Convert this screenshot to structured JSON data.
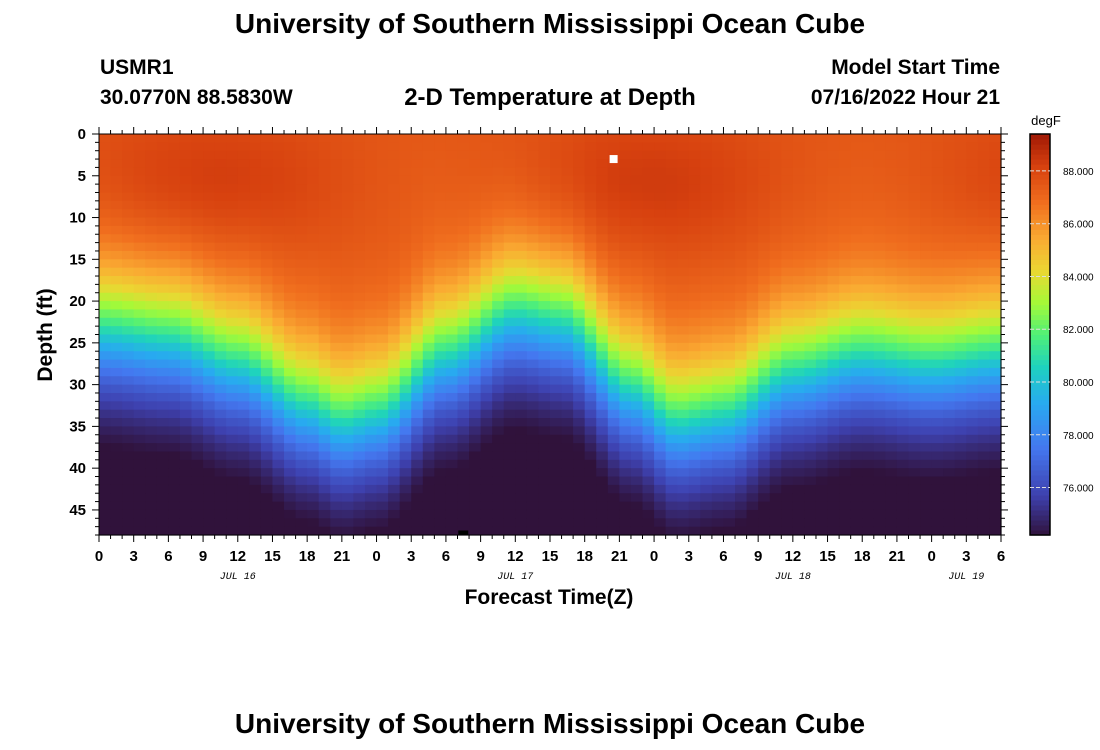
{
  "header": {
    "title": "University of Southern Mississippi Ocean Cube",
    "station_id": "USMR1",
    "location": "30.0770N  88.5830W",
    "model_start_label": "Model Start Time",
    "model_start_value": "07/16/2022 Hour 21",
    "footer_title": "University of Southern Mississippi Ocean Cube"
  },
  "chart_data": {
    "type": "heatmap",
    "title": "2-D Temperature at Depth",
    "xlabel": "Forecast Time(Z)",
    "ylabel": "Depth (ft)",
    "colorbar_unit": "degF",
    "x_range_hours": [
      0,
      78
    ],
    "x_tick_labels": [
      "0",
      "3",
      "6",
      "9",
      "12",
      "15",
      "18",
      "21",
      "0",
      "3",
      "6",
      "9",
      "12",
      "15",
      "18",
      "21",
      "0",
      "3",
      "6",
      "9",
      "12",
      "15",
      "18",
      "21",
      "0",
      "3",
      "6"
    ],
    "date_labels": [
      {
        "hour": 12,
        "label": "JUL 16"
      },
      {
        "hour": 36,
        "label": "JUL 17"
      },
      {
        "hour": 60,
        "label": "JUL 18"
      },
      {
        "hour": 75,
        "label": "JUL 19"
      }
    ],
    "y_range": [
      0,
      48
    ],
    "y_ticks": [
      0,
      5,
      10,
      15,
      20,
      25,
      30,
      35,
      40,
      45
    ],
    "colorbar_range": [
      74.2,
      89.4
    ],
    "colorbar_ticks": [
      "76.000",
      "78.000",
      "80.000",
      "82.000",
      "84.000",
      "86.000",
      "88.000"
    ],
    "colorbar_tick_values": [
      76,
      78,
      80,
      82,
      84,
      86,
      88
    ],
    "thermocline_depth_ft": [
      [
        0,
        23
      ],
      [
        6,
        24
      ],
      [
        12,
        27
      ],
      [
        18,
        32
      ],
      [
        21,
        34
      ],
      [
        24,
        33
      ],
      [
        30,
        26
      ],
      [
        36,
        21
      ],
      [
        40,
        22
      ],
      [
        46,
        30
      ],
      [
        50,
        34
      ],
      [
        54,
        33
      ],
      [
        60,
        28
      ],
      [
        66,
        26
      ],
      [
        72,
        27
      ],
      [
        78,
        26
      ]
    ],
    "surface_temp_degF": 87.5,
    "bottom_temp_degF": 74.8,
    "annotations": [
      {
        "hour": 44.5,
        "depth": 3,
        "note": "white marker"
      },
      {
        "hour": 31.5,
        "depth": 47.7,
        "note": "black marker"
      }
    ]
  }
}
